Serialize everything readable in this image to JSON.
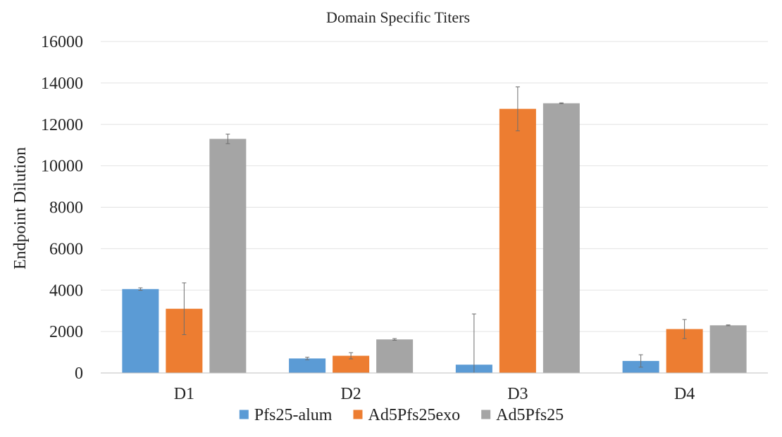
{
  "chart_data": {
    "type": "bar",
    "title": "Domain Specific Titers",
    "xlabel": "",
    "ylabel": "Endpoint Dilution",
    "ylim": [
      0,
      16000
    ],
    "yticks": [
      0,
      2000,
      4000,
      6000,
      8000,
      10000,
      12000,
      14000,
      16000
    ],
    "grid": true,
    "legend_position": "bottom",
    "categories": [
      "D1",
      "D2",
      "D3",
      "D4"
    ],
    "series": [
      {
        "name": "Pfs25-alum",
        "color": "#5b9bd5",
        "values": [
          4050,
          700,
          400,
          580
        ],
        "errors": [
          60,
          60,
          2450,
          300
        ]
      },
      {
        "name": "Ad5Pfs25exo",
        "color": "#ed7d31",
        "values": [
          3100,
          830,
          12750,
          2120
        ],
        "errors": [
          1250,
          150,
          1060,
          460
        ]
      },
      {
        "name": "Ad5Pfs25",
        "color": "#a5a5a5",
        "values": [
          11300,
          1620,
          13020,
          2300
        ],
        "errors": [
          230,
          40,
          20,
          20
        ]
      }
    ]
  }
}
